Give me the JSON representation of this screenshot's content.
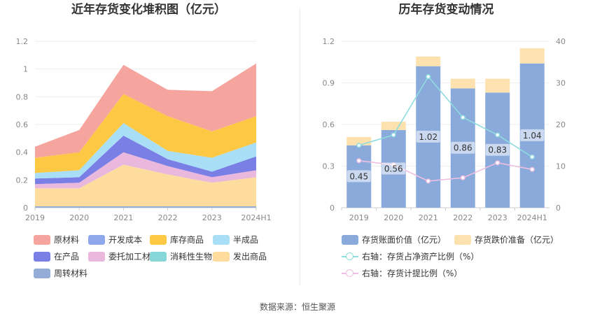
{
  "left": {
    "title": "近年存货变化堆积图（亿元）",
    "legend": [
      {
        "label": "原材料",
        "color": "#f6a59e"
      },
      {
        "label": "开发成本",
        "color": "#8fa8ec"
      },
      {
        "label": "库存商品",
        "color": "#fdc945"
      },
      {
        "label": "半成品",
        "color": "#a9dff6"
      },
      {
        "label": "在产品",
        "color": "#7a7fe6"
      },
      {
        "label": "委托加工材料",
        "color": "#e9b8dc"
      },
      {
        "label": "消耗性生物资产",
        "color": "#87d7d9"
      },
      {
        "label": "发出商品",
        "color": "#fddc9e"
      },
      {
        "label": "周转材料",
        "color": "#93add6"
      }
    ]
  },
  "right": {
    "title": "历年存货变动情况",
    "legend": [
      {
        "label": "存货账面价值（亿元）",
        "color": "#8aaadc",
        "kind": "box"
      },
      {
        "label": "存货跌价准备（亿元）",
        "color": "#fde2b0",
        "kind": "box"
      },
      {
        "label": "右轴：存货占净资产比例（%）",
        "color": "#8fdcdf",
        "kind": "line"
      },
      {
        "label": "右轴：存货计提比例（%）",
        "color": "#eebfe0",
        "kind": "line"
      }
    ]
  },
  "footer": "数据来源：恒生聚源",
  "chart_data": [
    {
      "type": "area",
      "stacked": true,
      "title": "近年存货变化堆积图（亿元）",
      "categories": [
        "2019",
        "2020",
        "2021",
        "2022",
        "2023",
        "2024H1"
      ],
      "ylim": [
        0,
        1.2
      ],
      "yticks": [
        "0",
        "0.2",
        "0.4",
        "0.6",
        "0.8",
        "1",
        "1.2"
      ],
      "grid": true,
      "legend_position": "bottom",
      "series": [
        {
          "name": "周转材料",
          "color": "#93add6",
          "values": [
            0.01,
            0.01,
            0.01,
            0.01,
            0.01,
            0.01
          ]
        },
        {
          "name": "发出商品",
          "color": "#fddc9e",
          "values": [
            0.13,
            0.13,
            0.3,
            0.23,
            0.17,
            0.21
          ]
        },
        {
          "name": "消耗性生物资产",
          "color": "#87d7d9",
          "values": [
            0,
            0,
            0,
            0,
            0,
            0
          ]
        },
        {
          "name": "委托加工材料",
          "color": "#e9b8dc",
          "values": [
            0.03,
            0.04,
            0.09,
            0.06,
            0.04,
            0.05
          ]
        },
        {
          "name": "在产品",
          "color": "#7a7fe6",
          "values": [
            0.04,
            0.04,
            0.12,
            0.05,
            0.04,
            0.1
          ]
        },
        {
          "name": "半成品",
          "color": "#a9dff6",
          "values": [
            0.04,
            0.05,
            0.09,
            0.06,
            0.1,
            0.1
          ]
        },
        {
          "name": "开发成本",
          "color": "#8fa8ec",
          "values": [
            0,
            0,
            0,
            0,
            0,
            0
          ]
        },
        {
          "name": "库存商品",
          "color": "#fdc945",
          "values": [
            0.11,
            0.13,
            0.21,
            0.25,
            0.19,
            0.19
          ]
        },
        {
          "name": "原材料",
          "color": "#f6a59e",
          "values": [
            0.08,
            0.16,
            0.21,
            0.19,
            0.29,
            0.38
          ]
        }
      ]
    },
    {
      "type": "bar",
      "stacked": true,
      "title": "历年存货变动情况",
      "categories": [
        "2019",
        "2020",
        "2021",
        "2022",
        "2023",
        "2024H1"
      ],
      "ylim": [
        0,
        1.2
      ],
      "yticks": [
        "0",
        "0.3",
        "0.6",
        "0.9",
        "1.2"
      ],
      "y2lim": [
        0,
        40
      ],
      "y2ticks": [
        "0",
        "10",
        "20",
        "30",
        "40"
      ],
      "grid": true,
      "legend_position": "bottom",
      "series": [
        {
          "name": "存货账面价值（亿元）",
          "axis": "left",
          "color": "#8aaadc",
          "values": [
            0.45,
            0.56,
            1.02,
            0.86,
            0.83,
            1.04
          ],
          "labels": [
            "0.45",
            "0.56",
            "1.02",
            "0.86",
            "0.83",
            "1.04"
          ]
        },
        {
          "name": "存货跌价准备（亿元）",
          "axis": "left",
          "color": "#fde2b0",
          "values": [
            0.06,
            0.06,
            0.07,
            0.07,
            0.1,
            0.11
          ]
        },
        {
          "name": "右轴：存货占净资产比例（%）",
          "axis": "right",
          "type": "line",
          "color": "#8fdcdf",
          "values": [
            15.0,
            17.5,
            31.5,
            21.7,
            17.5,
            12.2
          ]
        },
        {
          "name": "右轴：存货计提比例（%）",
          "axis": "right",
          "type": "line",
          "color": "#eebfe0",
          "values": [
            11.3,
            10.3,
            6.4,
            7.2,
            10.8,
            9.2
          ]
        }
      ]
    }
  ]
}
